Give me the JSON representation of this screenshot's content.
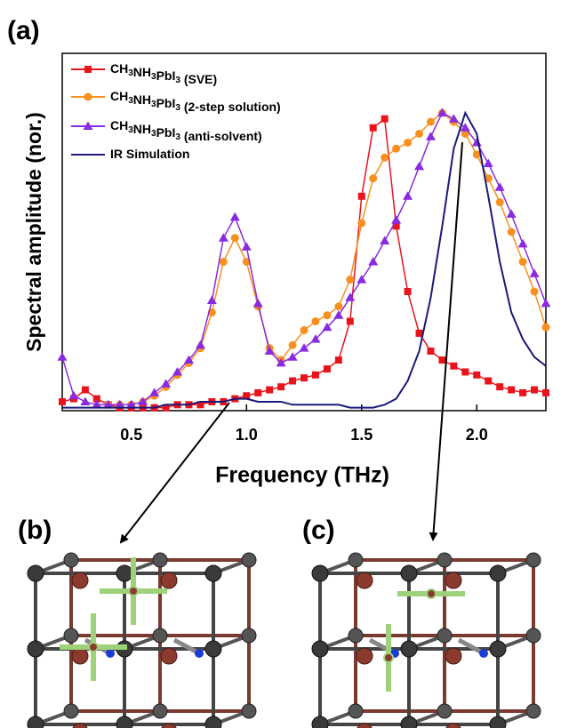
{
  "panel_labels": [
    "(a)",
    "(b)",
    "(c)"
  ],
  "chart_data": {
    "type": "line",
    "x_label": "Frequency (THz)",
    "y_label": "Spectral amplitude (nor.)",
    "xlim": [
      0.2,
      2.3
    ],
    "ylim": [
      0,
      1.2
    ],
    "xticks": [
      0.5,
      {
        "value": 1,
        "label": "1.0"
      },
      1.5,
      {
        "value": 2,
        "label": "2.0"
      }
    ],
    "legend": "upper left",
    "x": [
      0.2,
      0.25,
      0.3,
      0.35,
      0.4,
      0.45,
      0.5,
      0.55,
      0.6,
      0.65,
      0.7,
      0.75,
      0.8,
      0.85,
      0.9,
      0.95,
      1.0,
      1.05,
      1.1,
      1.15,
      1.2,
      1.25,
      1.3,
      1.35,
      1.4,
      1.45,
      1.5,
      1.55,
      1.6,
      1.65,
      1.7,
      1.75,
      1.8,
      1.85,
      1.9,
      1.95,
      2.0,
      2.05,
      2.1,
      2.15,
      2.2,
      2.25,
      2.3
    ],
    "series": [
      {
        "name": "CH3NH3PbI3 (SVE)",
        "color": "#e8141c",
        "marker": "square",
        "values": [
          0.03,
          0.04,
          0.07,
          0.04,
          0.02,
          0.01,
          0.01,
          0.01,
          0.01,
          0.01,
          0.02,
          0.02,
          0.02,
          0.03,
          0.03,
          0.04,
          0.05,
          0.06,
          0.07,
          0.08,
          0.1,
          0.11,
          0.12,
          0.14,
          0.17,
          0.3,
          0.72,
          0.95,
          0.98,
          0.62,
          0.4,
          0.26,
          0.2,
          0.17,
          0.15,
          0.13,
          0.12,
          0.1,
          0.08,
          0.07,
          0.06,
          0.07,
          0.06
        ]
      },
      {
        "name": "CH3NH3PbI3 (2-step solution)",
        "color": "#f7901e",
        "marker": "circle",
        "values": [
          null,
          null,
          null,
          null,
          0.02,
          0.02,
          0.02,
          0.03,
          0.05,
          0.08,
          0.12,
          0.16,
          0.21,
          0.33,
          0.5,
          0.58,
          0.5,
          0.35,
          0.21,
          0.17,
          0.22,
          0.27,
          0.3,
          0.32,
          0.35,
          0.44,
          0.63,
          0.78,
          0.85,
          0.88,
          0.9,
          0.93,
          0.97,
          1.0,
          0.97,
          0.93,
          0.86,
          0.78,
          0.7,
          0.6,
          0.5,
          0.4,
          0.28
        ]
      },
      {
        "name": "CH3NH3PbI3 (anti-solvent)",
        "color": "#8a2be2",
        "marker": "triangle",
        "values": [
          0.18,
          0.05,
          0.03,
          0.02,
          0.02,
          0.02,
          0.02,
          0.03,
          0.06,
          0.09,
          0.13,
          0.17,
          0.22,
          0.37,
          0.58,
          0.65,
          0.55,
          0.36,
          0.2,
          0.16,
          0.18,
          0.21,
          0.24,
          0.28,
          0.32,
          0.38,
          0.44,
          0.5,
          0.57,
          0.64,
          0.72,
          0.82,
          0.92,
          1.0,
          0.98,
          0.95,
          0.9,
          0.83,
          0.75,
          0.66,
          0.56,
          0.46,
          0.36
        ]
      },
      {
        "name": "IR Simulation",
        "color": "#1a1a7a",
        "marker": "none",
        "values": [
          0.01,
          0.01,
          0.01,
          0.01,
          0.01,
          0.01,
          0.01,
          0.01,
          0.01,
          0.02,
          0.02,
          0.02,
          0.03,
          0.03,
          0.03,
          0.04,
          0.04,
          0.03,
          0.03,
          0.03,
          0.02,
          0.02,
          0.02,
          0.02,
          0.02,
          0.01,
          0.01,
          0.01,
          0.02,
          0.04,
          0.1,
          0.2,
          0.38,
          0.62,
          0.88,
          1.0,
          0.93,
          0.72,
          0.5,
          0.33,
          0.24,
          0.18,
          0.15
        ]
      }
    ]
  }
}
